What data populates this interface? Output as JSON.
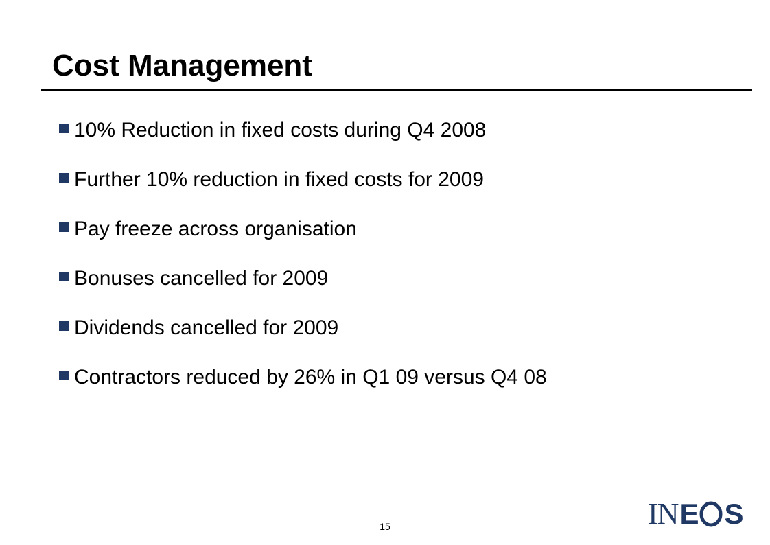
{
  "slide": {
    "title": "Cost Management",
    "bullets": [
      "10% Reduction in fixed costs during Q4 2008",
      "Further 10% reduction in fixed costs for 2009",
      "Pay freeze across organisation",
      "Bonuses cancelled for 2009",
      "Dividends cancelled for 2009",
      "Contractors reduced by 26% in Q1 09 versus Q4 08"
    ],
    "page_number": "15"
  },
  "logo": {
    "text": "INEOS",
    "part_serif": "IN",
    "part_e": "E",
    "part_s": "S",
    "color": "#1f3864"
  },
  "colors": {
    "bullet_marker": "#1f3864",
    "title_rule": "#000000",
    "text": "#000000"
  }
}
